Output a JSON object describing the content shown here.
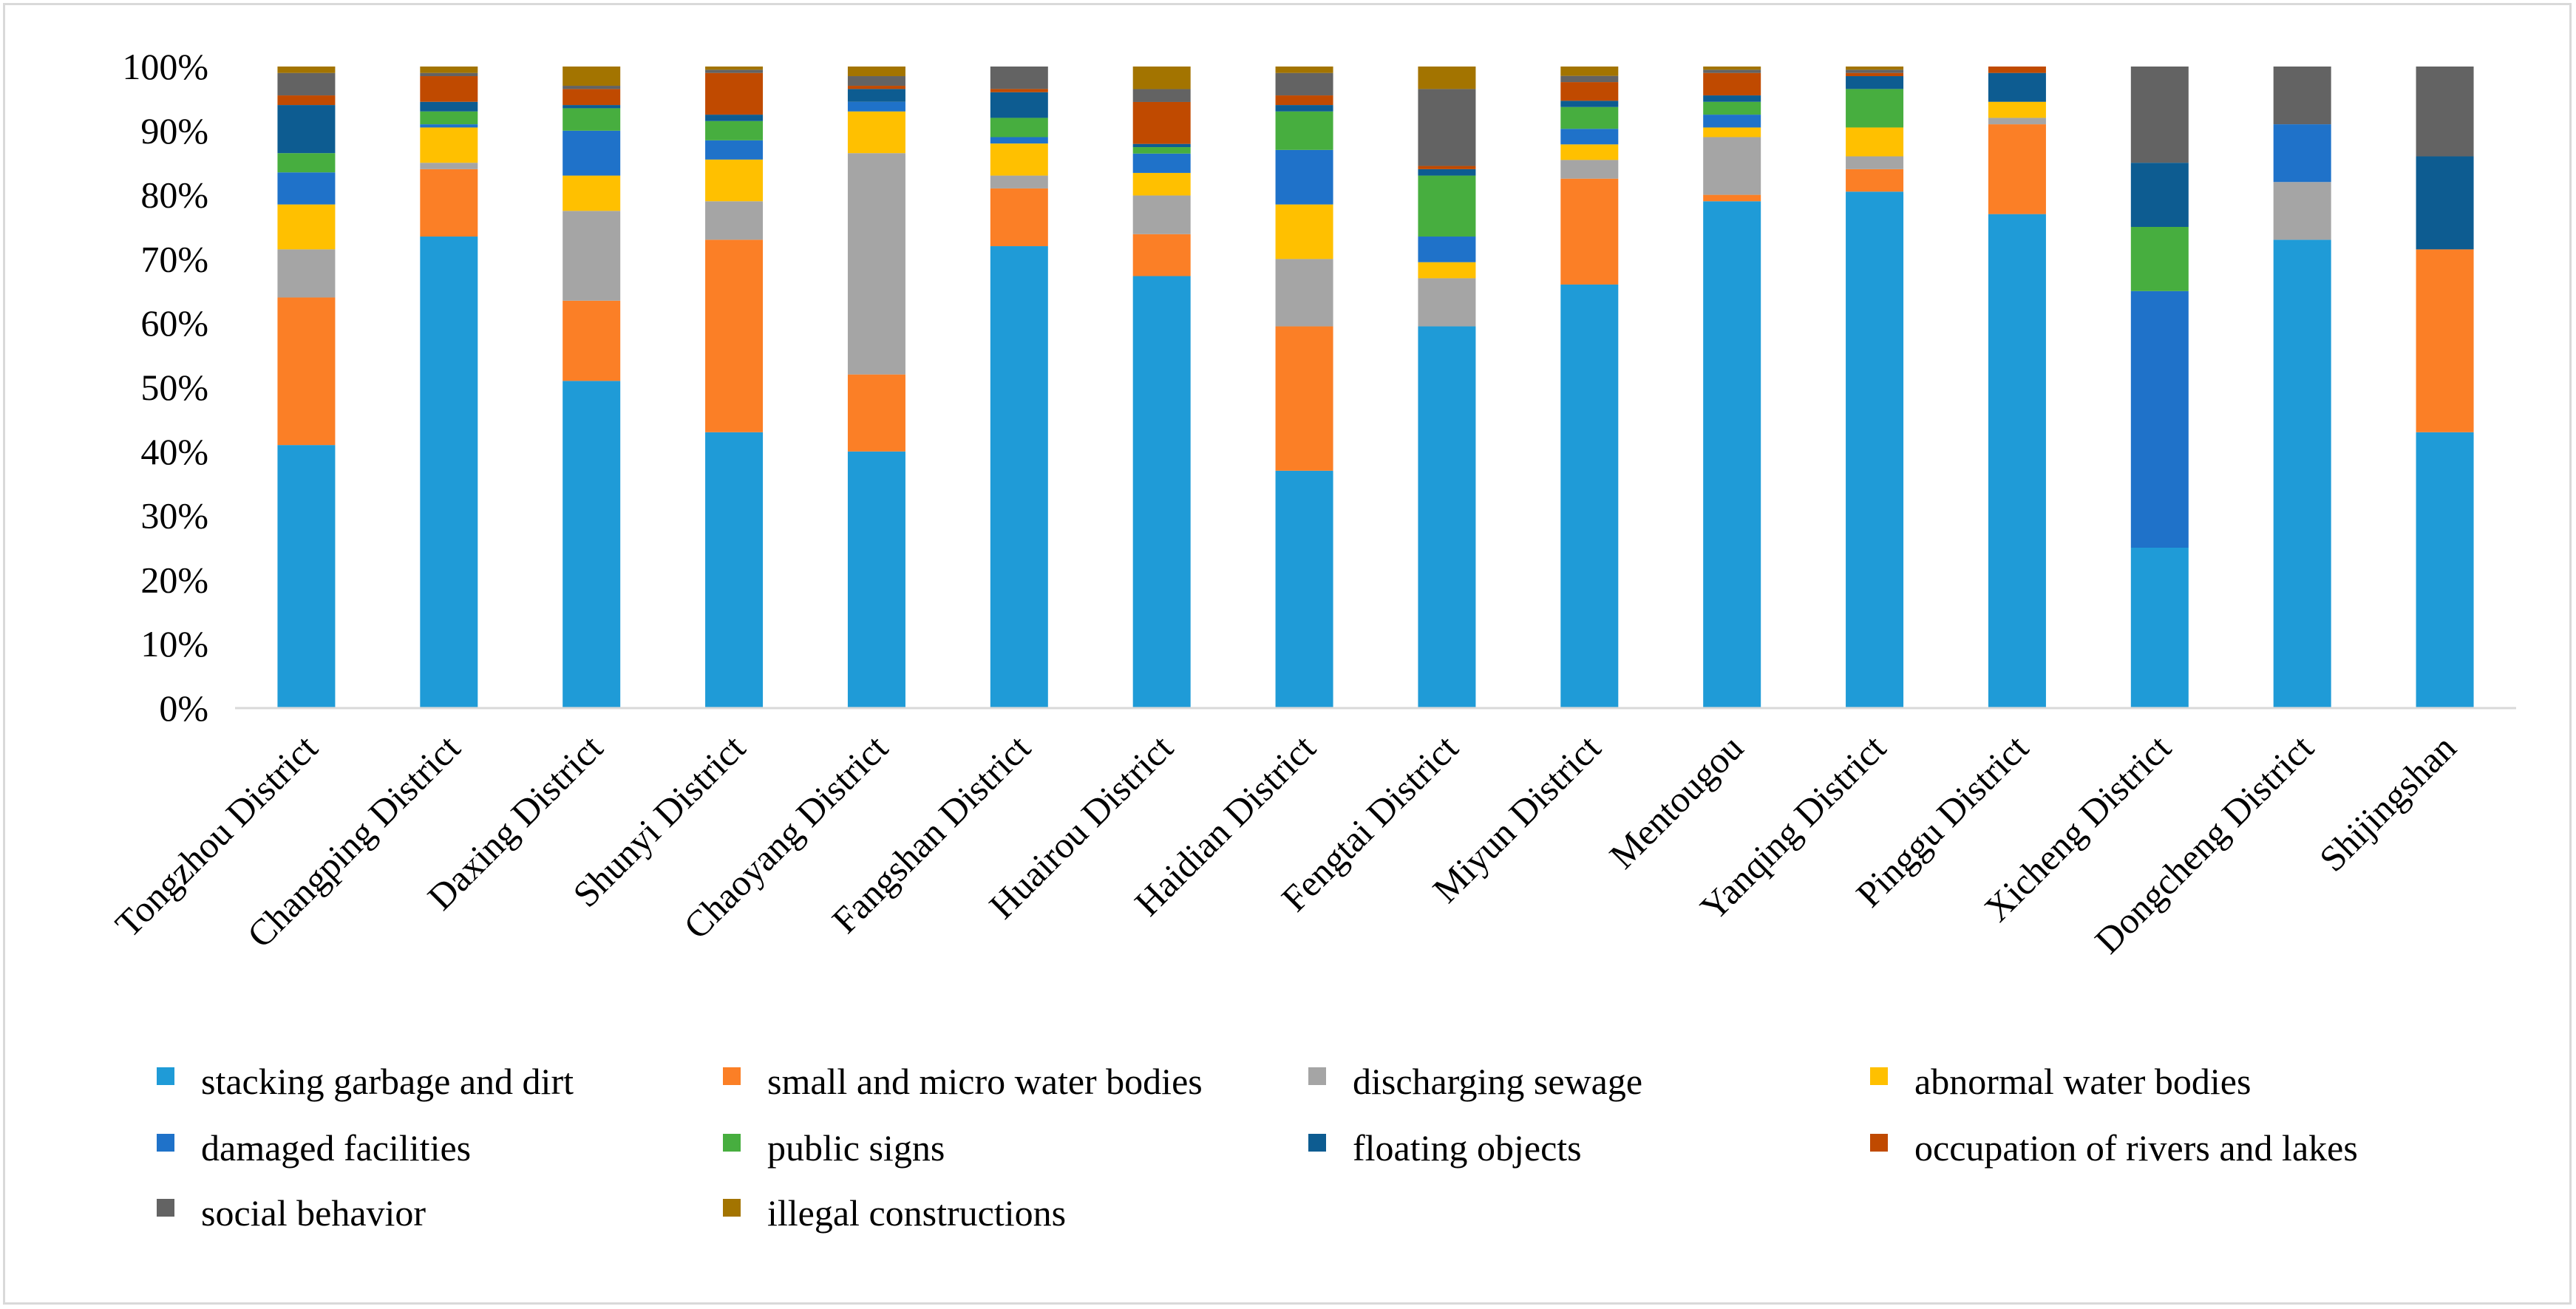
{
  "chart_data": {
    "type": "bar",
    "stacked": true,
    "normalized": true,
    "title": "",
    "xlabel": "",
    "ylabel": "",
    "ylim": [
      0,
      100
    ],
    "y_ticks": [
      "0%",
      "10%",
      "20%",
      "30%",
      "40%",
      "50%",
      "60%",
      "70%",
      "80%",
      "90%",
      "100%"
    ],
    "grid": false,
    "legend_position": "bottom",
    "categories": [
      "Tongzhou District",
      "Changping District",
      "Daxing District",
      "Shunyi District",
      "Chaoyang District",
      "Fangshan District",
      "Huairou District",
      "Haidian District",
      "Fengtai District",
      "Miyun District",
      "Mentougou",
      "Yanqing District",
      "Pinggu District",
      "Xicheng District",
      "Dongcheng District",
      "Shijingshan"
    ],
    "series": [
      {
        "name": "stacking garbage and dirt",
        "color": "#1f9bd7",
        "values": [
          41,
          73.5,
          51,
          43,
          40,
          72,
          67,
          37,
          59.5,
          68,
          79,
          80.5,
          77,
          25,
          73,
          43
        ]
      },
      {
        "name": "small and micro water bodies",
        "color": "#fb7f26",
        "values": [
          23,
          10.5,
          12.5,
          30,
          12,
          9,
          6.5,
          22.5,
          0,
          17,
          1,
          3.5,
          14,
          0,
          0,
          28.5
        ]
      },
      {
        "name": "discharging sewage",
        "color": "#a5a5a5",
        "values": [
          7.5,
          1,
          14,
          6,
          34.5,
          2,
          6,
          10.5,
          7.5,
          3,
          9,
          2,
          1,
          0,
          9,
          0
        ]
      },
      {
        "name": "abnormal water bodies",
        "color": "#ffc000",
        "values": [
          7,
          5.5,
          5.5,
          6.5,
          6.5,
          5,
          3.5,
          8.5,
          2.5,
          2.5,
          1.5,
          4.5,
          2.5,
          0,
          0,
          0
        ]
      },
      {
        "name": "damaged facilities",
        "color": "#1f72c9",
        "values": [
          5,
          0.5,
          7,
          3,
          1.5,
          1,
          3,
          8.5,
          4,
          2.5,
          2,
          0,
          0,
          40,
          9,
          0
        ]
      },
      {
        "name": "public signs",
        "color": "#47ae3f",
        "values": [
          3,
          2,
          3.5,
          3,
          0,
          3,
          1,
          6,
          9.5,
          3.5,
          2,
          6,
          0,
          10,
          0,
          0
        ]
      },
      {
        "name": "floating objects",
        "color": "#0d5c91",
        "values": [
          7.5,
          1.5,
          0.5,
          1,
          2,
          4,
          0.5,
          1,
          1,
          1,
          1,
          2,
          4.5,
          10,
          0,
          14.5
        ]
      },
      {
        "name": "occupation of rivers and lakes",
        "color": "#c04a00",
        "values": [
          1.5,
          4,
          2.5,
          6.5,
          0.5,
          0.5,
          6.5,
          1.5,
          0.5,
          3,
          3.5,
          0.5,
          1,
          0,
          0,
          0
        ]
      },
      {
        "name": "social behavior",
        "color": "#636363",
        "values": [
          3.5,
          0.5,
          0.5,
          0.5,
          1.5,
          3.5,
          2,
          3.5,
          12,
          1,
          0.5,
          0.5,
          0,
          15,
          9,
          14
        ]
      },
      {
        "name": "illegal constructions",
        "color": "#a37400",
        "values": [
          1,
          1,
          3,
          0.5,
          1.5,
          0,
          3.5,
          1,
          3.5,
          1.5,
          0.5,
          0.5,
          0,
          0,
          0,
          0
        ]
      }
    ]
  }
}
